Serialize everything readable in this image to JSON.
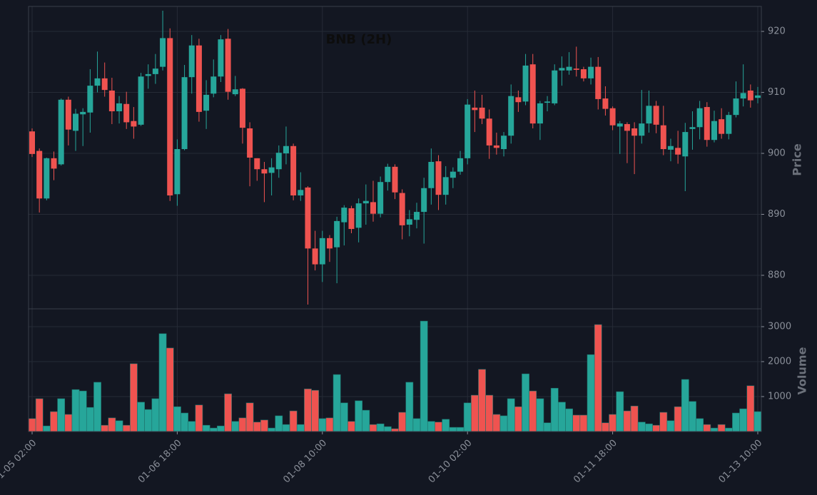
{
  "chart_data": {
    "type": "candlestick",
    "title": "BNB (2H)",
    "ylabel": "Price",
    "volume_label": "Volume",
    "up_color": "#26a69a",
    "down_color": "#ef5350",
    "grid": true,
    "categories": [
      "01-05 02:00",
      null,
      null,
      null,
      null,
      null,
      null,
      null,
      null,
      null,
      null,
      null,
      null,
      null,
      null,
      null,
      null,
      null,
      null,
      null,
      "01-06 18:00",
      null,
      null,
      null,
      null,
      null,
      null,
      null,
      null,
      null,
      null,
      null,
      null,
      null,
      null,
      null,
      null,
      null,
      null,
      null,
      "01-08 10:00",
      null,
      null,
      null,
      null,
      null,
      null,
      null,
      null,
      null,
      null,
      null,
      null,
      null,
      null,
      null,
      null,
      null,
      null,
      null,
      "01-10 02:00",
      null,
      null,
      null,
      null,
      null,
      null,
      null,
      null,
      null,
      null,
      null,
      null,
      null,
      null,
      null,
      null,
      null,
      null,
      null,
      "01-11 18:00",
      null,
      null,
      null,
      null,
      null,
      null,
      null,
      null,
      null,
      null,
      null,
      null,
      null,
      null,
      null,
      null,
      null,
      null,
      null,
      "01-13 10:00"
    ],
    "open": [
      903.6,
      900.4,
      892.6,
      899.2,
      898.2,
      908.8,
      903.7,
      906.4,
      906.7,
      911.1,
      912.3,
      910.3,
      906.9,
      908.1,
      905.3,
      904.7,
      912.7,
      913,
      914.2,
      918.9,
      893.3,
      900.7,
      912.5,
      917.7,
      907,
      909.8,
      912.6,
      918.8,
      909.7,
      910.6,
      904.1,
      899.2,
      897.4,
      896.8,
      897.4,
      900,
      901.2,
      893.1,
      894.4,
      884.4,
      881.8,
      886.1,
      884.6,
      888.7,
      891,
      887.8,
      891.8,
      892,
      890.1,
      895.3,
      897.8,
      893.5,
      888.3,
      889.1,
      890.4,
      894.3,
      898.7,
      893.2,
      896,
      897,
      899.2,
      907.5,
      907.5,
      905.7,
      901.3,
      900.7,
      902.9,
      909.2,
      908.5,
      914.6,
      904.9,
      908.3,
      908.2,
      913.6,
      913.6,
      913.9,
      913.8,
      912.3,
      914.2,
      909,
      907.4,
      904.4,
      904.8,
      904.1,
      902.9,
      904.9,
      907.8,
      904.6,
      900.6,
      900.9,
      899.5,
      904,
      904.3,
      907.6,
      902.2,
      905.6,
      903.2,
      906.3,
      909,
      910.3,
      909.1
    ],
    "high": [
      904.1,
      900.8,
      899.3,
      900.3,
      909,
      909.3,
      907.3,
      907.4,
      913.8,
      916.7,
      914.9,
      912.4,
      909.4,
      910.1,
      907.6,
      913.2,
      914.6,
      916.3,
      923.4,
      920.5,
      902.3,
      914.5,
      919.4,
      918.8,
      912,
      915.4,
      919.4,
      920.4,
      912.7,
      910.7,
      905.1,
      899.2,
      898.6,
      899.2,
      901.3,
      904.4,
      901.6,
      896.9,
      894.6,
      887.3,
      887.3,
      886.6,
      889.6,
      891.5,
      891.4,
      892.6,
      894.9,
      895.5,
      896.2,
      898.3,
      898.2,
      894.1,
      890.7,
      891.9,
      896,
      900.8,
      899.7,
      897.9,
      897.7,
      900.4,
      908.9,
      910.3,
      909.6,
      907.2,
      903.4,
      903.5,
      911.3,
      910.3,
      916.3,
      916.3,
      908.6,
      909.4,
      914.6,
      915.9,
      916.6,
      917.5,
      914.2,
      915.7,
      915.8,
      911,
      907.7,
      905.3,
      905.1,
      905.1,
      910.4,
      910.3,
      908.6,
      907.8,
      902.4,
      903.7,
      905,
      906.9,
      908.6,
      908.4,
      907,
      907.4,
      906.8,
      911.8,
      914.6,
      911.3,
      910.9
    ],
    "low": [
      899.4,
      890.3,
      892.3,
      895.6,
      898,
      901.3,
      900.4,
      901.2,
      903.4,
      910,
      909.3,
      904.8,
      904.9,
      904,
      902.4,
      904.5,
      910.6,
      911.4,
      913.6,
      892.2,
      891.4,
      900.5,
      909.8,
      905.2,
      904,
      909.2,
      911.7,
      908.8,
      909.4,
      901.6,
      894.6,
      895.5,
      892,
      893.1,
      896,
      898.2,
      892.3,
      892.2,
      875.2,
      880.8,
      878.9,
      882.2,
      878.7,
      884.9,
      886.9,
      885.4,
      888.3,
      888.8,
      889.5,
      893.9,
      892.5,
      885.9,
      886.4,
      887.7,
      885.2,
      891.6,
      890.7,
      891.6,
      894.3,
      896.5,
      898.2,
      903.5,
      904.8,
      899.1,
      899.8,
      899.5,
      901.6,
      906.8,
      907.9,
      904.1,
      902.2,
      906.9,
      907.9,
      911.1,
      912.9,
      912.6,
      911.8,
      911.3,
      907.2,
      906.2,
      903.8,
      899.9,
      898.4,
      896.6,
      901.6,
      903.4,
      903.3,
      899.7,
      898.7,
      898.3,
      893.8,
      900.6,
      902.3,
      901.1,
      901.8,
      902.4,
      902.3,
      905.9,
      907.7,
      907.5,
      908.2
    ],
    "close": [
      899.9,
      892.6,
      899.2,
      897.5,
      908.8,
      903.9,
      906.5,
      906.8,
      911.1,
      912.3,
      910.4,
      906.9,
      908.2,
      905.1,
      904.4,
      912.6,
      913,
      913.9,
      918.9,
      893.1,
      900.7,
      912.5,
      917.7,
      906.8,
      909.6,
      912.6,
      918.7,
      910.1,
      910.5,
      904.2,
      899.3,
      897.4,
      896.7,
      897.7,
      900.1,
      901.2,
      893.1,
      894,
      884.4,
      881.8,
      886.1,
      884.4,
      888.9,
      891.1,
      887.6,
      891.8,
      892.2,
      890.1,
      895.3,
      897.8,
      893.6,
      888.2,
      889.2,
      890.4,
      894.3,
      898.6,
      893.2,
      896.1,
      897,
      899.2,
      908,
      907.1,
      905.7,
      901.3,
      900.9,
      902.9,
      909.4,
      908.4,
      914.4,
      904.9,
      908.2,
      908.5,
      913.6,
      914,
      914.2,
      913.7,
      912.3,
      914.2,
      908.9,
      907.3,
      904.6,
      904.9,
      903.7,
      902.9,
      904.9,
      907.8,
      904.7,
      900.7,
      901.2,
      899.8,
      903.5,
      904.3,
      907.4,
      902.2,
      905.3,
      903.2,
      906.3,
      909,
      909.9,
      908.7,
      909.5
    ],
    "volume": [
      370,
      940,
      160,
      570,
      940,
      490,
      1200,
      1160,
      690,
      1410,
      180,
      390,
      310,
      180,
      1940,
      840,
      630,
      940,
      2800,
      2390,
      710,
      530,
      290,
      760,
      180,
      100,
      160,
      1080,
      290,
      390,
      820,
      270,
      330,
      100,
      450,
      200,
      590,
      200,
      1220,
      1180,
      370,
      390,
      1630,
      820,
      290,
      880,
      610,
      200,
      220,
      140,
      80,
      550,
      1410,
      370,
      3160,
      290,
      270,
      350,
      120,
      120,
      820,
      1040,
      1780,
      1040,
      490,
      450,
      940,
      710,
      1650,
      1160,
      940,
      250,
      1240,
      840,
      650,
      470,
      470,
      2200,
      3060,
      250,
      490,
      1140,
      590,
      730,
      270,
      220,
      180,
      550,
      310,
      710,
      1490,
      860,
      370,
      200,
      100,
      200,
      100,
      530,
      650,
      1310,
      570
    ],
    "ylim": [
      874.5,
      924.1
    ],
    "yticks": [
      880,
      890,
      900,
      910,
      920
    ],
    "volume_ylim": [
      0,
      3510
    ],
    "volume_yticks": [
      1000,
      2000,
      3000
    ]
  }
}
